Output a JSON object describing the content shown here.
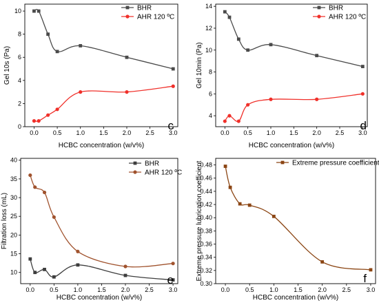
{
  "chart_data": [
    {
      "type": "line",
      "panel_label": "c",
      "xlabel": "HCBC concentration (w/v%)",
      "ylabel": "Gel 10s (Pa)",
      "xlim": [
        -0.2,
        3.1
      ],
      "ylim": [
        0,
        10.6
      ],
      "xticks": [
        "0.0",
        "0.5",
        "1.0",
        "1.5",
        "2.0",
        "2.5",
        "3.0"
      ],
      "yticks": [
        "0",
        "2",
        "4",
        "6",
        "8",
        "10"
      ],
      "legend_position": "top-right",
      "series": [
        {
          "name": "BHR",
          "color": "#4a4a4a",
          "marker": "square",
          "x": [
            0,
            0.1,
            0.3,
            0.5,
            1.0,
            2.0,
            3.0
          ],
          "y": [
            10,
            10,
            8,
            6.5,
            7,
            6,
            5
          ]
        },
        {
          "name": "AHR 120 ºC",
          "color": "#f0302a",
          "marker": "circle",
          "x": [
            0,
            0.1,
            0.3,
            0.5,
            1.0,
            2.0,
            3.0
          ],
          "y": [
            0.5,
            0.5,
            1,
            1.5,
            3,
            3,
            3.5
          ]
        }
      ]
    },
    {
      "type": "line",
      "panel_label": "d",
      "xlabel": "HCBC concentration (w/v%)",
      "ylabel": "Gel 10min (Pa)",
      "xlim": [
        -0.2,
        3.1
      ],
      "ylim": [
        3,
        14.2
      ],
      "xticks": [
        "0.0",
        "0.5",
        "1.0",
        "1.5",
        "2.0",
        "2.5",
        "3.0"
      ],
      "yticks": [
        "4",
        "6",
        "8",
        "10",
        "12",
        "14"
      ],
      "legend_position": "top-right",
      "series": [
        {
          "name": "BHR",
          "color": "#4a4a4a",
          "marker": "square",
          "x": [
            0,
            0.1,
            0.3,
            0.5,
            1.0,
            2.0,
            3.0
          ],
          "y": [
            13.5,
            13,
            11,
            10,
            10.5,
            9.5,
            8.5
          ]
        },
        {
          "name": "AHR 120 ºC",
          "color": "#f0302a",
          "marker": "circle",
          "x": [
            0,
            0.1,
            0.3,
            0.5,
            1.0,
            2.0,
            3.0
          ],
          "y": [
            3.5,
            4,
            3.5,
            5,
            5.5,
            5.5,
            6
          ]
        }
      ]
    },
    {
      "type": "line",
      "panel_label": "e",
      "xlabel": "HCBC concentration (w/v%)",
      "ylabel": "Filtration loss (mL)",
      "xlim": [
        -0.2,
        3.1
      ],
      "ylim": [
        7,
        40.5
      ],
      "xticks": [
        "0.0",
        "0.5",
        "1.0",
        "1.5",
        "2.0",
        "2.5",
        "3.0"
      ],
      "yticks": [
        "10",
        "15",
        "20",
        "25",
        "30",
        "35",
        "40"
      ],
      "legend_position": "top-right",
      "series": [
        {
          "name": "BHR",
          "color": "#3d3d3d",
          "marker": "square",
          "x": [
            0,
            0.1,
            0.3,
            0.5,
            1.0,
            2.0,
            3.0
          ],
          "y": [
            13.6,
            10.0,
            10.8,
            8.8,
            12.0,
            9.2,
            8.0
          ]
        },
        {
          "name": "AHR 120 ºC",
          "color": "#a0522d",
          "marker": "circle",
          "x": [
            0,
            0.1,
            0.3,
            0.5,
            1.0,
            2.0,
            3.0
          ],
          "y": [
            36.0,
            32.8,
            31.4,
            24.8,
            15.6,
            11.6,
            12.4
          ]
        }
      ]
    },
    {
      "type": "line",
      "panel_label": "f",
      "xlabel": "HCBC concentration (w/v%)",
      "ylabel": "Extreme pressure lubrication coefficient",
      "xlim": [
        -0.2,
        3.1
      ],
      "ylim": [
        0.3,
        0.49
      ],
      "xticks": [
        "0.0",
        "0.5",
        "1.0",
        "1.5",
        "2.0",
        "2.5",
        "3.0"
      ],
      "yticks": [
        "0.30",
        "0.32",
        "0.34",
        "0.36",
        "0.38",
        "0.40",
        "0.42",
        "0.44",
        "0.46",
        "0.48"
      ],
      "legend_position": "top-right",
      "series": [
        {
          "name": "Extreme pressure coefficient",
          "color": "#8b4513",
          "marker": "square",
          "x": [
            0,
            0.1,
            0.3,
            0.5,
            1.0,
            2.0,
            3.0
          ],
          "y": [
            0.478,
            0.446,
            0.421,
            0.419,
            0.402,
            0.333,
            0.321
          ]
        }
      ]
    }
  ]
}
